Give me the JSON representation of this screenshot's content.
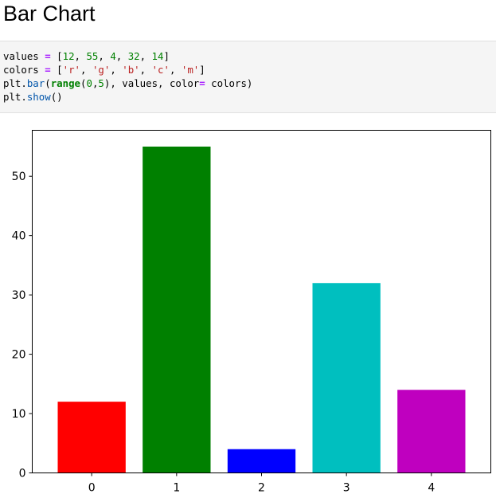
{
  "page": {
    "title": "Bar Chart"
  },
  "code": {
    "lines": [
      "values = [12, 55, 4, 32, 14]",
      "colors = ['r', 'g', 'b', 'c', 'm']",
      "plt.bar(range(0,5), values, color= colors)",
      "plt.show()"
    ]
  },
  "chart_data": {
    "type": "bar",
    "categories": [
      "0",
      "1",
      "2",
      "3",
      "4"
    ],
    "values": [
      12,
      55,
      4,
      32,
      14
    ],
    "colors": [
      "#ff0000",
      "#008000",
      "#0000ff",
      "#00bfbf",
      "#bf00bf"
    ],
    "title": "",
    "xlabel": "",
    "ylabel": "",
    "ylim": [
      0,
      57.75
    ],
    "yticks": [
      0,
      10,
      20,
      30,
      40,
      50
    ],
    "grid": false
  }
}
